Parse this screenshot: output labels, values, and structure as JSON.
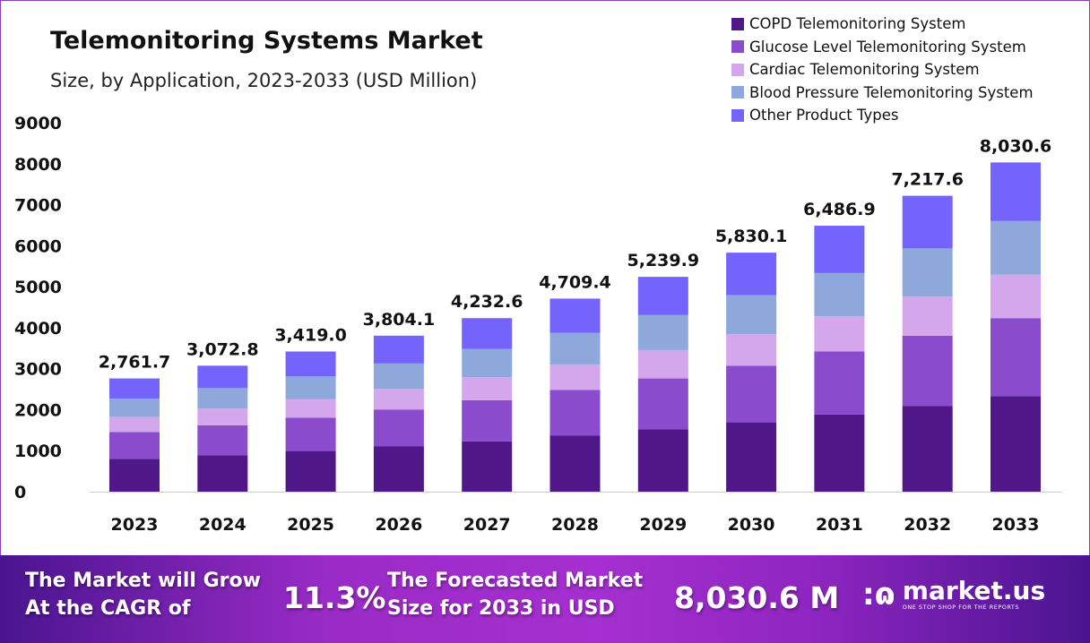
{
  "chart_data": {
    "type": "bar",
    "stacked": true,
    "title": "Telemonitoring Systems Market",
    "subtitle": "Size, by Application, 2023-2033 (USD Million)",
    "xlabel": "",
    "ylabel": "",
    "ylim": [
      0,
      9000
    ],
    "yticks": [
      0,
      1000,
      2000,
      3000,
      4000,
      5000,
      6000,
      7000,
      8000,
      9000
    ],
    "grid": false,
    "legend_position": "top-right",
    "categories": [
      "2023",
      "2024",
      "2025",
      "2026",
      "2027",
      "2028",
      "2029",
      "2030",
      "2031",
      "2032",
      "2033"
    ],
    "totals": [
      "2,761.7",
      "3,072.8",
      "3,419.0",
      "3,804.1",
      "4,232.6",
      "4,709.4",
      "5,239.9",
      "5,830.1",
      "6,486.9",
      "7,217.6",
      "8,030.6"
    ],
    "series": [
      {
        "name": "COPD Telemonitoring System",
        "color": "#4f1787",
        "values": [
          800.9,
          891.1,
          991.5,
          1103.2,
          1227.5,
          1365.7,
          1519.6,
          1690.7,
          1881.2,
          2093.1,
          2328.9
        ]
      },
      {
        "name": "Glucose Level Telemonitoring System",
        "color": "#8a4bcc",
        "values": [
          654.5,
          728.3,
          810.3,
          901.6,
          1003.1,
          1116.1,
          1241.9,
          1381.7,
          1537.4,
          1710.6,
          1903.3
        ]
      },
      {
        "name": "Cardiac Telemonitoring System",
        "color": "#d4a7ec",
        "values": [
          364.5,
          405.6,
          451.3,
          502.1,
          558.7,
          621.6,
          691.7,
          769.6,
          856.3,
          952.7,
          1060.0
        ]
      },
      {
        "name": "Blood Pressure Telemonitoring System",
        "color": "#8fa8dc",
        "values": [
          450.2,
          500.9,
          557.3,
          620.1,
          689.9,
          767.6,
          854.1,
          950.3,
          1057.4,
          1176.5,
          1309.0
        ]
      },
      {
        "name": "Other Product Types",
        "color": "#7564fb",
        "values": [
          491.6,
          546.9,
          608.6,
          677.1,
          753.4,
          838.4,
          932.6,
          1037.8,
          1154.6,
          1284.7,
          1429.4
        ]
      }
    ]
  },
  "footer": {
    "cagr_text_1": "The Market will Grow",
    "cagr_text_2": "At the CAGR of",
    "cagr_value": "11.3%",
    "forecast_text_1": "The Forecasted Market",
    "forecast_text_2": "Size for 2033 in USD",
    "forecast_value": "8,030.6 M",
    "brand_name": "market.us",
    "brand_tagline": "ONE STOP SHOP FOR THE REPORTS"
  }
}
